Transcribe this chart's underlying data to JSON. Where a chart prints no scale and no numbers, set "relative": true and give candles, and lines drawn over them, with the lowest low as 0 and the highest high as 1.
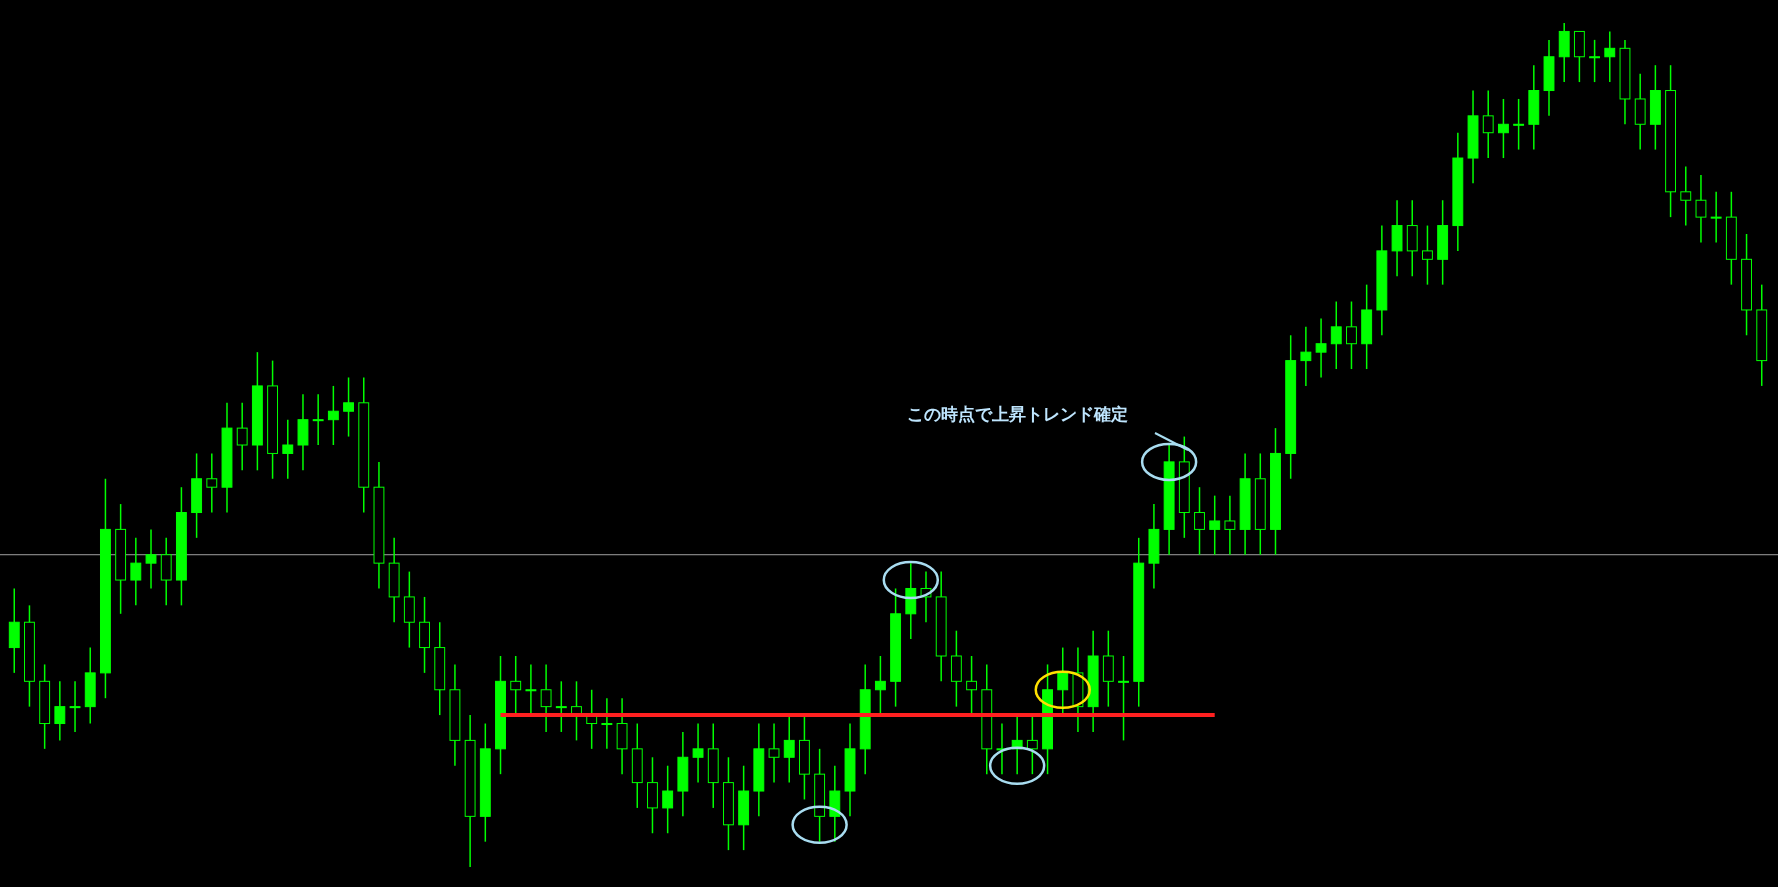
{
  "chart_data": {
    "type": "candlestick",
    "relative": true,
    "color": "#00ff00",
    "categories": [
      null,
      null,
      null,
      null,
      null,
      null,
      null,
      null,
      null,
      null,
      null,
      null,
      null,
      null,
      null,
      null,
      null,
      null,
      null,
      null,
      null,
      null,
      null,
      null,
      null,
      null,
      null,
      null,
      null,
      null,
      null,
      null,
      null,
      null,
      null,
      null,
      null,
      null,
      null,
      null,
      null,
      null,
      null,
      null,
      null,
      null,
      null,
      null,
      null,
      null,
      null,
      null,
      null,
      null,
      null,
      null,
      null,
      null,
      null,
      null,
      null,
      null,
      null,
      null,
      null,
      null,
      null,
      null,
      null,
      null,
      null,
      null,
      null,
      null,
      null,
      null,
      null,
      null,
      null,
      null,
      null,
      null,
      null,
      null,
      null,
      null,
      null,
      null,
      null,
      null,
      null,
      null,
      null,
      null,
      null,
      null,
      null,
      null,
      null,
      null,
      null,
      null,
      null,
      null,
      null,
      null,
      null,
      null,
      null,
      null,
      null,
      null,
      null,
      null,
      null,
      null
    ],
    "ohlc": [
      [
        0.26,
        0.33,
        0.23,
        0.29
      ],
      [
        0.29,
        0.31,
        0.19,
        0.22
      ],
      [
        0.22,
        0.24,
        0.14,
        0.17
      ],
      [
        0.17,
        0.22,
        0.15,
        0.19
      ],
      [
        0.19,
        0.22,
        0.16,
        0.19
      ],
      [
        0.19,
        0.26,
        0.17,
        0.23
      ],
      [
        0.23,
        0.46,
        0.2,
        0.4
      ],
      [
        0.4,
        0.43,
        0.3,
        0.34
      ],
      [
        0.34,
        0.39,
        0.31,
        0.36
      ],
      [
        0.36,
        0.4,
        0.33,
        0.37
      ],
      [
        0.37,
        0.39,
        0.31,
        0.34
      ],
      [
        0.34,
        0.45,
        0.31,
        0.42
      ],
      [
        0.42,
        0.49,
        0.39,
        0.46
      ],
      [
        0.46,
        0.49,
        0.42,
        0.45
      ],
      [
        0.45,
        0.55,
        0.42,
        0.52
      ],
      [
        0.52,
        0.55,
        0.47,
        0.5
      ],
      [
        0.5,
        0.61,
        0.47,
        0.57
      ],
      [
        0.57,
        0.6,
        0.46,
        0.49
      ],
      [
        0.49,
        0.53,
        0.46,
        0.5
      ],
      [
        0.5,
        0.56,
        0.47,
        0.53
      ],
      [
        0.53,
        0.56,
        0.5,
        0.53
      ],
      [
        0.53,
        0.57,
        0.5,
        0.54
      ],
      [
        0.54,
        0.58,
        0.51,
        0.55
      ],
      [
        0.55,
        0.58,
        0.42,
        0.45
      ],
      [
        0.45,
        0.48,
        0.33,
        0.36
      ],
      [
        0.36,
        0.39,
        0.29,
        0.32
      ],
      [
        0.32,
        0.35,
        0.26,
        0.29
      ],
      [
        0.29,
        0.32,
        0.23,
        0.26
      ],
      [
        0.26,
        0.29,
        0.18,
        0.21
      ],
      [
        0.21,
        0.24,
        0.12,
        0.15
      ],
      [
        0.15,
        0.18,
        0,
        0.06
      ],
      [
        0.06,
        0.17,
        0.03,
        0.14
      ],
      [
        0.14,
        0.25,
        0.11,
        0.22
      ],
      [
        0.22,
        0.25,
        0.18,
        0.21
      ],
      [
        0.21,
        0.24,
        0.18,
        0.21
      ],
      [
        0.21,
        0.24,
        0.16,
        0.19
      ],
      [
        0.19,
        0.22,
        0.16,
        0.19
      ],
      [
        0.19,
        0.22,
        0.15,
        0.18
      ],
      [
        0.18,
        0.21,
        0.14,
        0.17
      ],
      [
        0.17,
        0.2,
        0.14,
        0.17
      ],
      [
        0.17,
        0.2,
        0.11,
        0.14
      ],
      [
        0.14,
        0.17,
        0.07,
        0.1
      ],
      [
        0.1,
        0.13,
        0.04,
        0.07
      ],
      [
        0.07,
        0.12,
        0.04,
        0.09
      ],
      [
        0.09,
        0.16,
        0.06,
        0.13
      ],
      [
        0.13,
        0.17,
        0.1,
        0.14
      ],
      [
        0.14,
        0.17,
        0.07,
        0.1
      ],
      [
        0.1,
        0.13,
        0.02,
        0.05
      ],
      [
        0.05,
        0.12,
        0.02,
        0.09
      ],
      [
        0.09,
        0.17,
        0.06,
        0.14
      ],
      [
        0.14,
        0.17,
        0.1,
        0.13
      ],
      [
        0.13,
        0.18,
        0.1,
        0.15
      ],
      [
        0.15,
        0.18,
        0.08,
        0.11
      ],
      [
        0.11,
        0.14,
        0.03,
        0.06
      ],
      [
        0.06,
        0.12,
        0.03,
        0.09
      ],
      [
        0.09,
        0.17,
        0.06,
        0.14
      ],
      [
        0.14,
        0.24,
        0.11,
        0.21
      ],
      [
        0.21,
        0.25,
        0.18,
        0.22
      ],
      [
        0.22,
        0.33,
        0.19,
        0.3
      ],
      [
        0.3,
        0.36,
        0.27,
        0.33
      ],
      [
        0.33,
        0.35,
        0.29,
        0.32
      ],
      [
        0.32,
        0.35,
        0.22,
        0.25
      ],
      [
        0.25,
        0.28,
        0.19,
        0.22
      ],
      [
        0.22,
        0.25,
        0.18,
        0.21
      ],
      [
        0.21,
        0.24,
        0.11,
        0.14
      ],
      [
        0.14,
        0.17,
        0.11,
        0.14
      ],
      [
        0.14,
        0.18,
        0.11,
        0.15
      ],
      [
        0.15,
        0.18,
        0.11,
        0.14
      ],
      [
        0.14,
        0.24,
        0.11,
        0.21
      ],
      [
        0.21,
        0.26,
        0.18,
        0.23
      ],
      [
        0.23,
        0.26,
        0.16,
        0.19
      ],
      [
        0.19,
        0.28,
        0.16,
        0.25
      ],
      [
        0.25,
        0.28,
        0.19,
        0.22
      ],
      [
        0.22,
        0.25,
        0.15,
        0.22
      ],
      [
        0.22,
        0.39,
        0.19,
        0.36
      ],
      [
        0.36,
        0.43,
        0.33,
        0.4
      ],
      [
        0.4,
        0.5,
        0.37,
        0.48
      ],
      [
        0.48,
        0.51,
        0.39,
        0.42
      ],
      [
        0.42,
        0.45,
        0.37,
        0.4
      ],
      [
        0.4,
        0.44,
        0.37,
        0.41
      ],
      [
        0.41,
        0.44,
        0.37,
        0.4
      ],
      [
        0.4,
        0.49,
        0.37,
        0.46
      ],
      [
        0.46,
        0.49,
        0.37,
        0.4
      ],
      [
        0.4,
        0.52,
        0.37,
        0.49
      ],
      [
        0.49,
        0.63,
        0.46,
        0.6
      ],
      [
        0.6,
        0.64,
        0.57,
        0.61
      ],
      [
        0.61,
        0.65,
        0.58,
        0.62
      ],
      [
        0.62,
        0.67,
        0.59,
        0.64
      ],
      [
        0.64,
        0.67,
        0.59,
        0.62
      ],
      [
        0.62,
        0.69,
        0.59,
        0.66
      ],
      [
        0.66,
        0.76,
        0.63,
        0.73
      ],
      [
        0.73,
        0.79,
        0.7,
        0.76
      ],
      [
        0.76,
        0.79,
        0.7,
        0.73
      ],
      [
        0.73,
        0.76,
        0.69,
        0.72
      ],
      [
        0.72,
        0.79,
        0.69,
        0.76
      ],
      [
        0.76,
        0.87,
        0.73,
        0.84
      ],
      [
        0.84,
        0.92,
        0.81,
        0.89
      ],
      [
        0.89,
        0.92,
        0.84,
        0.87
      ],
      [
        0.87,
        0.91,
        0.84,
        0.88
      ],
      [
        0.88,
        0.91,
        0.85,
        0.88
      ],
      [
        0.88,
        0.95,
        0.85,
        0.92
      ],
      [
        0.92,
        0.98,
        0.89,
        0.96
      ],
      [
        0.96,
        1,
        0.93,
        0.99
      ],
      [
        0.99,
        0.99,
        0.93,
        0.96
      ],
      [
        0.96,
        0.98,
        0.93,
        0.96
      ],
      [
        0.96,
        0.99,
        0.93,
        0.97
      ],
      [
        0.97,
        0.98,
        0.88,
        0.91
      ],
      [
        0.91,
        0.94,
        0.85,
        0.88
      ],
      [
        0.88,
        0.95,
        0.85,
        0.92
      ],
      [
        0.92,
        0.95,
        0.77,
        0.8
      ],
      [
        0.8,
        0.83,
        0.76,
        0.79
      ],
      [
        0.79,
        0.82,
        0.74,
        0.77
      ],
      [
        0.77,
        0.8,
        0.74,
        0.77
      ],
      [
        0.77,
        0.8,
        0.69,
        0.72
      ],
      [
        0.72,
        0.75,
        0.63,
        0.66
      ],
      [
        0.66,
        0.69,
        0.57,
        0.6
      ]
    ],
    "series": [
      {
        "type": "line",
        "color": "#ff2020",
        "values": [
          null,
          null,
          null,
          null,
          null,
          null,
          null,
          null,
          null,
          null,
          null,
          null,
          null,
          null,
          null,
          null,
          null,
          null,
          null,
          null,
          null,
          null,
          null,
          null,
          null,
          null,
          null,
          null,
          null,
          null,
          null,
          null,
          0.18,
          0.18,
          0.18,
          0.18,
          0.18,
          0.18,
          0.18,
          0.18,
          0.18,
          0.18,
          0.18,
          0.18,
          0.18,
          0.18,
          0.18,
          0.18,
          0.18,
          0.18,
          0.18,
          0.18,
          0.18,
          0.18,
          0.18,
          0.18,
          0.18,
          0.18,
          0.18,
          0.18,
          0.18,
          0.18,
          0.18,
          0.18,
          0.18,
          0.18,
          0.18,
          0.18,
          0.18,
          0.18,
          0.18,
          0.18,
          0.18,
          0.18,
          0.18,
          0.18,
          0.18,
          0.18,
          0.18,
          0.18,
          null,
          null,
          null,
          null,
          null,
          null,
          null,
          null,
          null,
          null,
          null,
          null,
          null,
          null,
          null,
          null,
          null,
          null,
          null,
          null,
          null,
          null,
          null,
          null,
          null,
          null,
          null,
          null,
          null,
          null,
          null,
          null,
          null,
          null,
          null,
          null
        ]
      }
    ],
    "ref_lines": [
      {
        "axis": "y",
        "value": 0.37,
        "color": "#a0a0a0"
      }
    ],
    "annotations": [
      "この時点で上昇トレンド確定"
    ]
  }
}
